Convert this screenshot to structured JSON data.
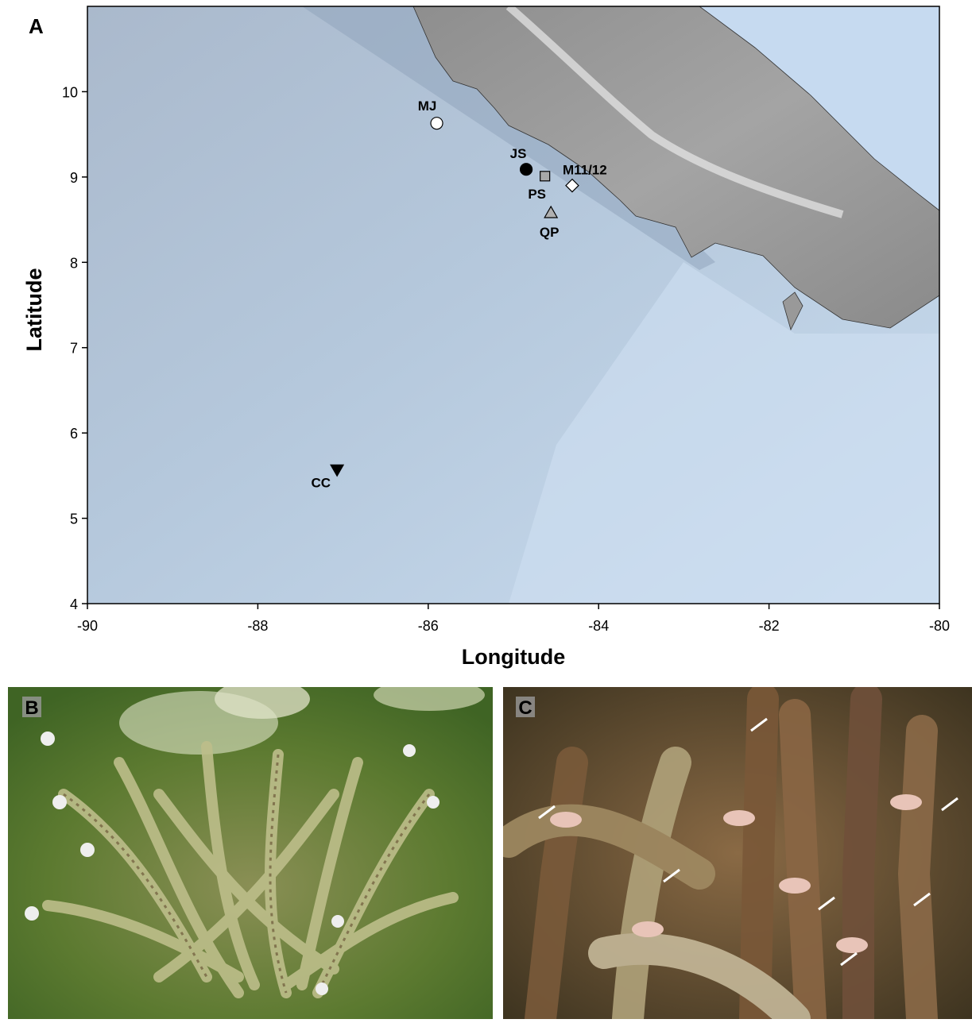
{
  "panel_labels": [
    "A",
    "B",
    "C"
  ],
  "chart_data": {
    "type": "map",
    "xlabel": "Longitude",
    "ylabel": "Latitude",
    "xlim": [
      -90,
      -80
    ],
    "ylim": [
      4,
      11
    ],
    "xticks": [
      -90,
      -88,
      -86,
      -84,
      -82,
      -80
    ],
    "yticks": [
      4,
      5,
      6,
      7,
      8,
      9,
      10
    ],
    "sites": [
      {
        "label": "MJ",
        "lon": -85.9,
        "lat": 9.63,
        "marker": "circle",
        "color": "#ffffff"
      },
      {
        "label": "JS",
        "lon": -84.85,
        "lat": 9.09,
        "marker": "circle",
        "color": "#000000"
      },
      {
        "label": "PS",
        "lon": -84.63,
        "lat": 9.01,
        "marker": "square",
        "color": "#a8a8a8"
      },
      {
        "label": "M11/12",
        "lon": -84.31,
        "lat": 8.9,
        "marker": "diamond",
        "color": "#ffffff"
      },
      {
        "label": "QP",
        "lon": -84.56,
        "lat": 8.58,
        "marker": "triangle-up",
        "color": "#b0b0b0"
      },
      {
        "label": "CC",
        "lon": -87.07,
        "lat": 5.57,
        "marker": "triangle-down",
        "color": "#000000"
      }
    ]
  }
}
